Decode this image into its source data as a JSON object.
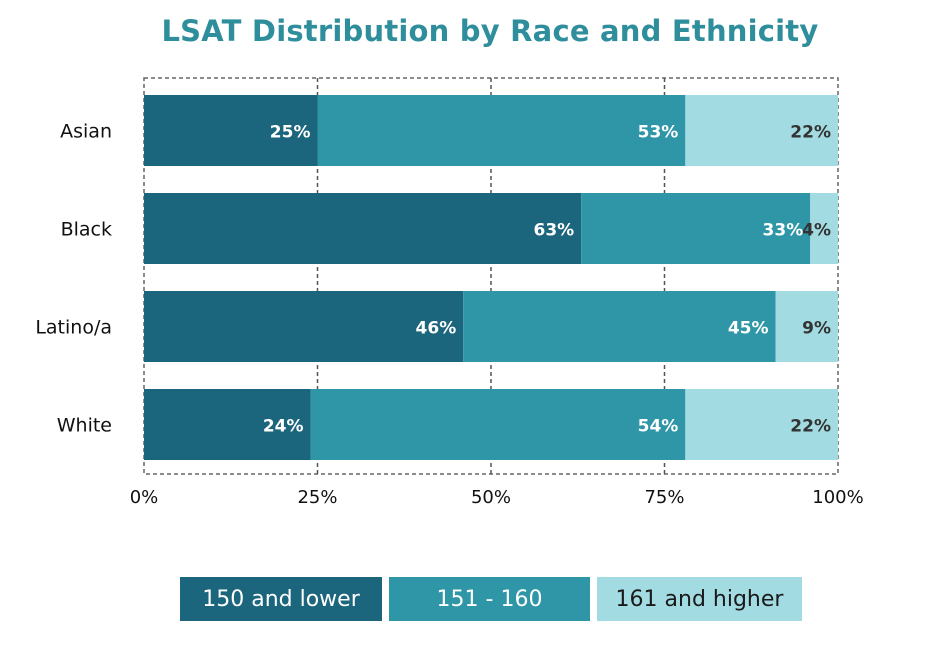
{
  "chart_data": {
    "type": "bar",
    "orientation": "horizontal",
    "stacked": true,
    "title": "LSAT Distribution by Race and Ethnicity",
    "categories": [
      "Asian",
      "Black",
      "Latino/a",
      "White"
    ],
    "series": [
      {
        "name": "150 and lower",
        "color": "#1b667c",
        "values": [
          25,
          63,
          46,
          24
        ],
        "labels": [
          "25%",
          "63%",
          "46%",
          "24%"
        ]
      },
      {
        "name": "151 - 160",
        "color": "#2e96a7",
        "values": [
          53,
          33,
          45,
          54
        ],
        "labels": [
          "53%",
          "33%",
          "45%",
          "54%"
        ]
      },
      {
        "name": "161 and higher",
        "color": "#a2dbe2",
        "values": [
          22,
          4,
          9,
          22
        ],
        "labels": [
          "22%",
          "4%",
          "9%",
          "22%"
        ]
      }
    ],
    "xlim": [
      0,
      100
    ],
    "xticks": [
      0,
      25,
      50,
      75,
      100
    ],
    "xtick_labels": [
      "0%",
      "25%",
      "50%",
      "75%",
      "100%"
    ],
    "grid": true,
    "legend_position": "bottom"
  }
}
